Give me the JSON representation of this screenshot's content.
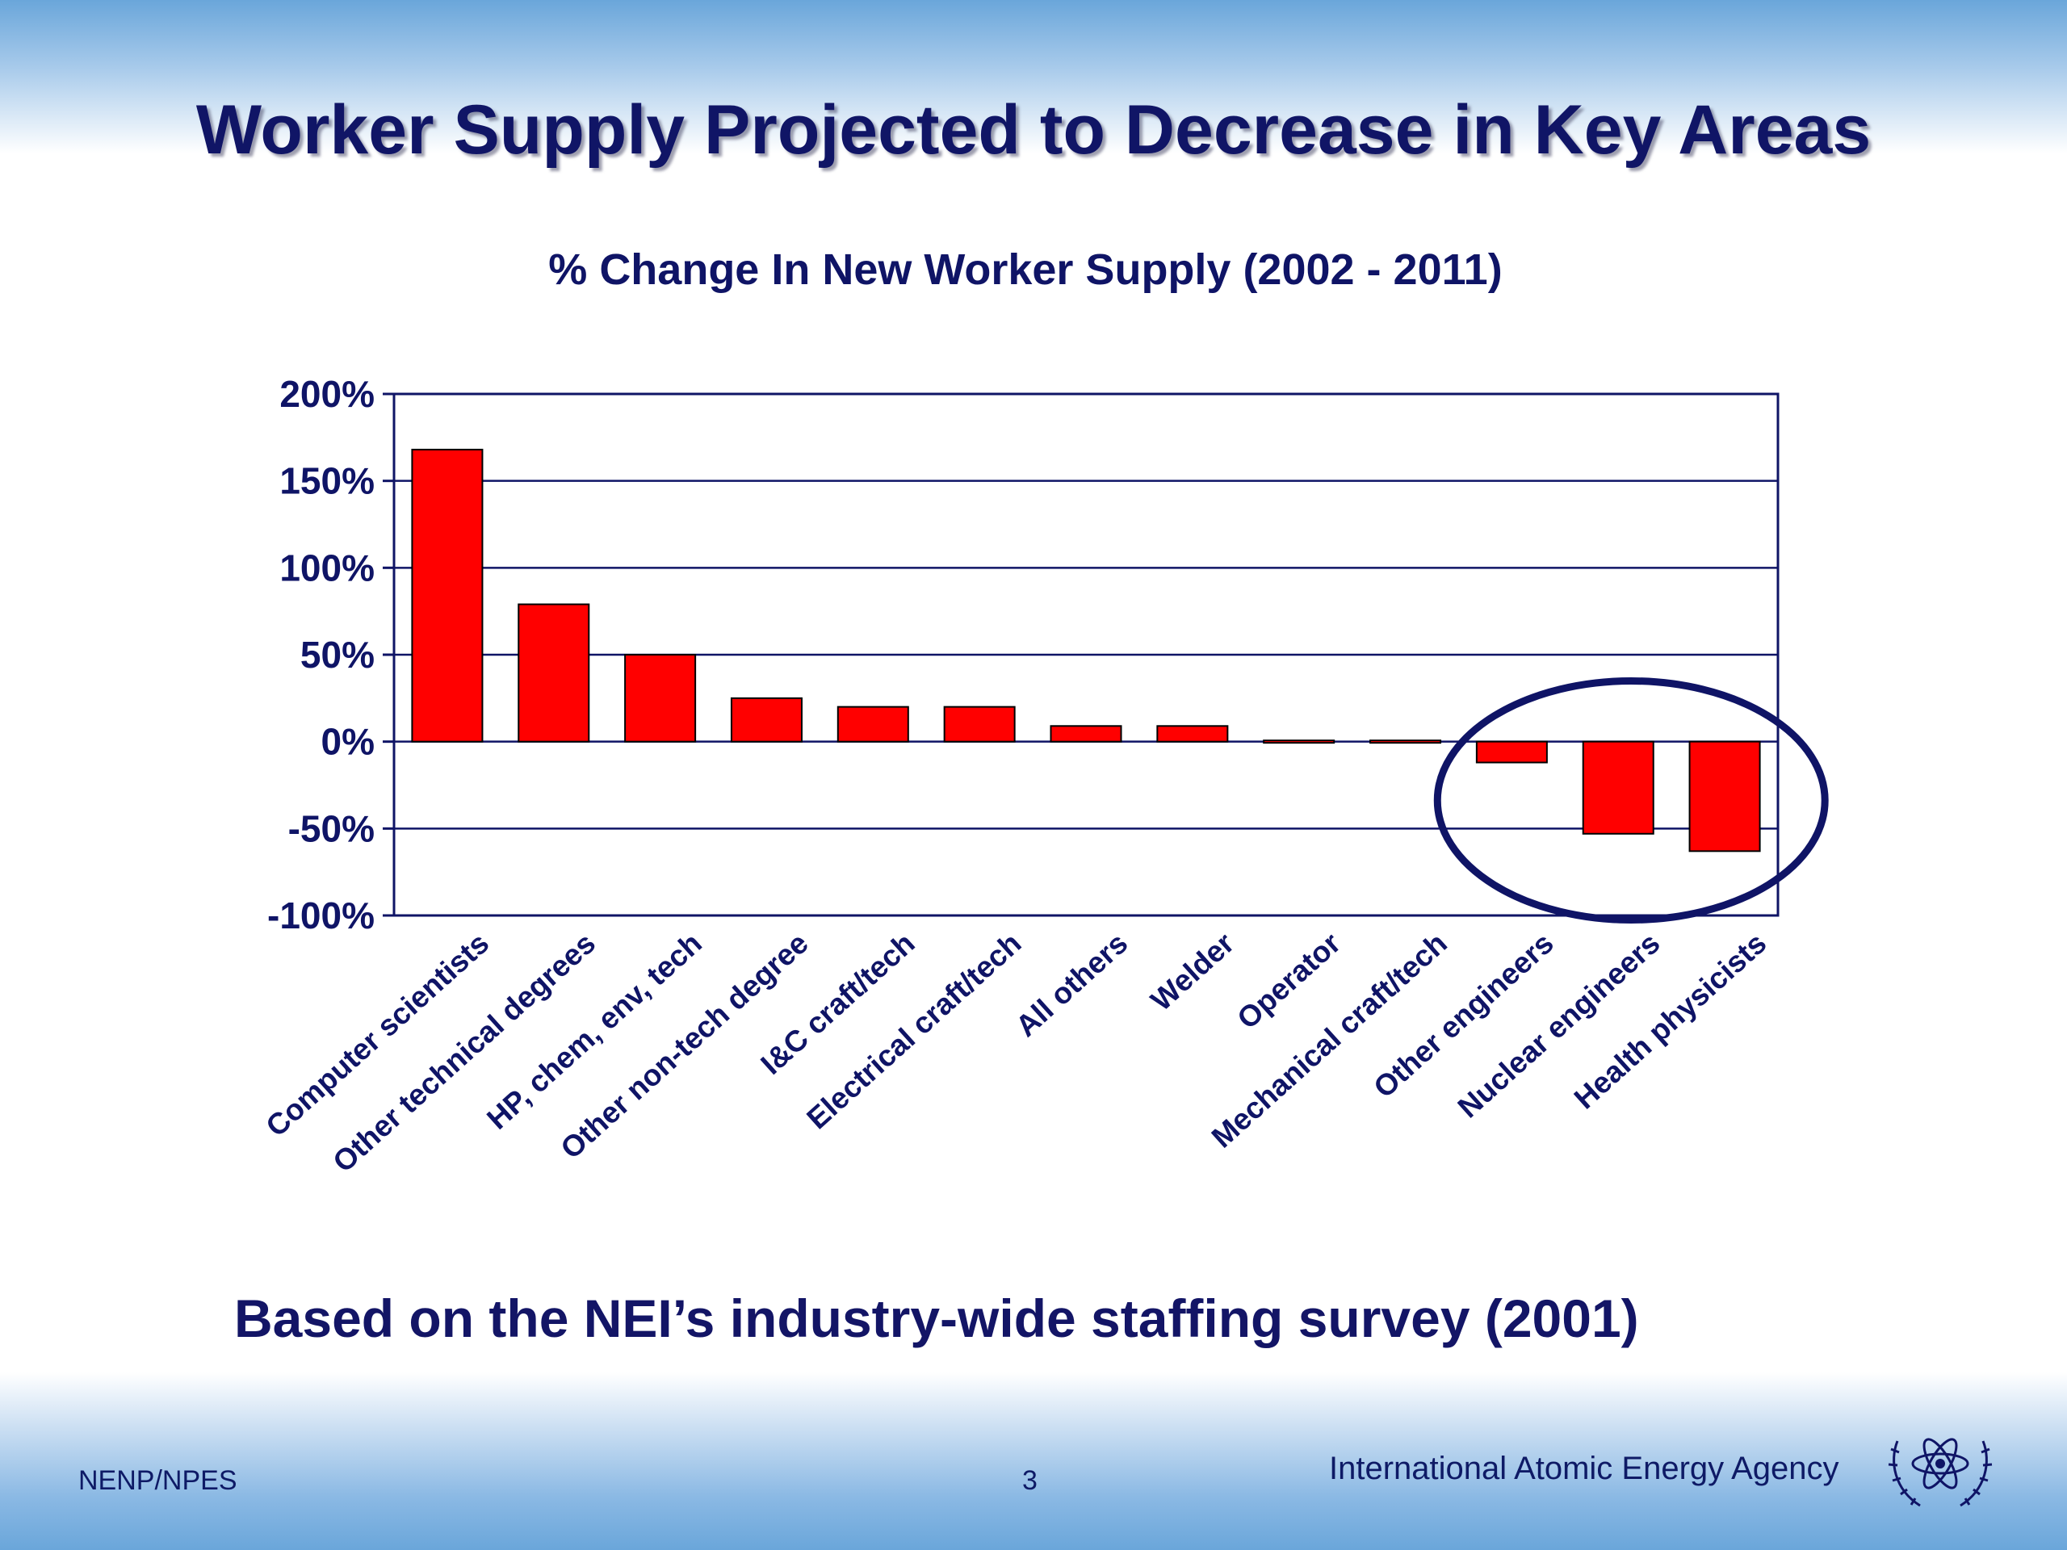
{
  "slide": {
    "title": "Worker Supply Projected to Decrease in Key Areas",
    "footnote": "Based on the NEI’s industry-wide staffing survey (2001)"
  },
  "footer": {
    "left": "NENP/NPES",
    "page_number": "3",
    "organization": "International Atomic Energy Agency",
    "logo_icon": "iaea-emblem-icon"
  },
  "colors": {
    "bar_fill": "#ff0000",
    "axis_and_text": "#0f1466",
    "highlight_ellipse": "#0f1466"
  },
  "chart_data": {
    "type": "bar",
    "title": "% Change In New Worker Supply (2002 - 2011)",
    "xlabel": "",
    "ylabel": "",
    "ylim": [
      -100,
      200
    ],
    "yticks": [
      -100,
      -50,
      0,
      50,
      100,
      150,
      200
    ],
    "ytick_labels": [
      "-100%",
      "-50%",
      "0%",
      "50%",
      "100%",
      "150%",
      "200%"
    ],
    "grid": true,
    "categories": [
      "Computer scientists",
      "Other technical degrees",
      "HP, chem, env,  tech",
      "Other non-tech degree",
      "I&C craft/tech",
      "Electrical craft/tech",
      "All others",
      "Welder",
      "Operator",
      "Mechanical craft/tech",
      "Other engineers",
      "Nuclear engineers",
      "Health physicists"
    ],
    "values": [
      168,
      79,
      50,
      25,
      20,
      20,
      9,
      9,
      0,
      0,
      -12,
      -53,
      -63
    ],
    "highlighted_categories": [
      "Other engineers",
      "Nuclear engineers",
      "Health physicists"
    ]
  }
}
